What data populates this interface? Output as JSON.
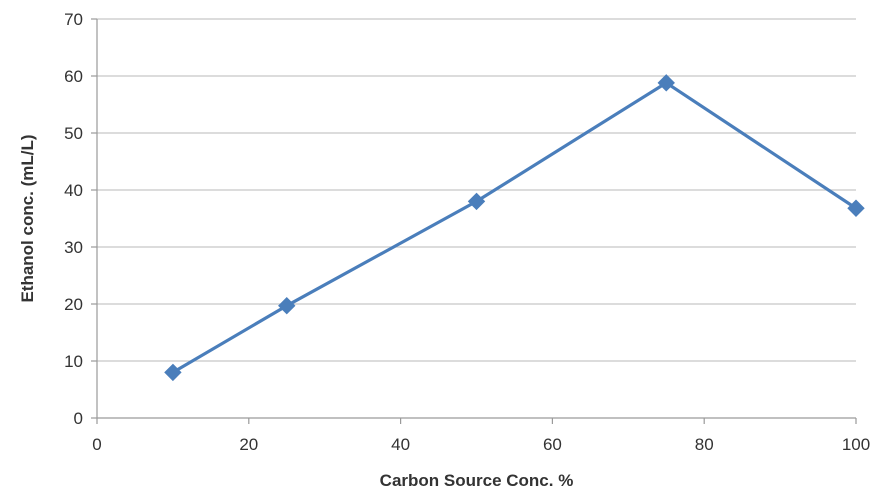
{
  "chart_data": {
    "type": "line",
    "title": "",
    "xlabel": "Carbon Source Conc. %",
    "ylabel": "Ethanol conc. (mL/L)",
    "xlim": [
      0,
      100
    ],
    "ylim": [
      0,
      70
    ],
    "xticks": [
      0,
      20,
      40,
      60,
      80,
      100
    ],
    "yticks": [
      0,
      10,
      20,
      30,
      40,
      50,
      60,
      70
    ],
    "grid": "horizontal",
    "legend": "none",
    "series": [
      {
        "color": "#4a7ebb",
        "marker": "diamond",
        "points": [
          {
            "x": 10,
            "y": 8
          },
          {
            "x": 25,
            "y": 19.7
          },
          {
            "x": 50,
            "y": 38
          },
          {
            "x": 75,
            "y": 58.8
          },
          {
            "x": 100,
            "y": 36.8
          }
        ]
      }
    ]
  }
}
